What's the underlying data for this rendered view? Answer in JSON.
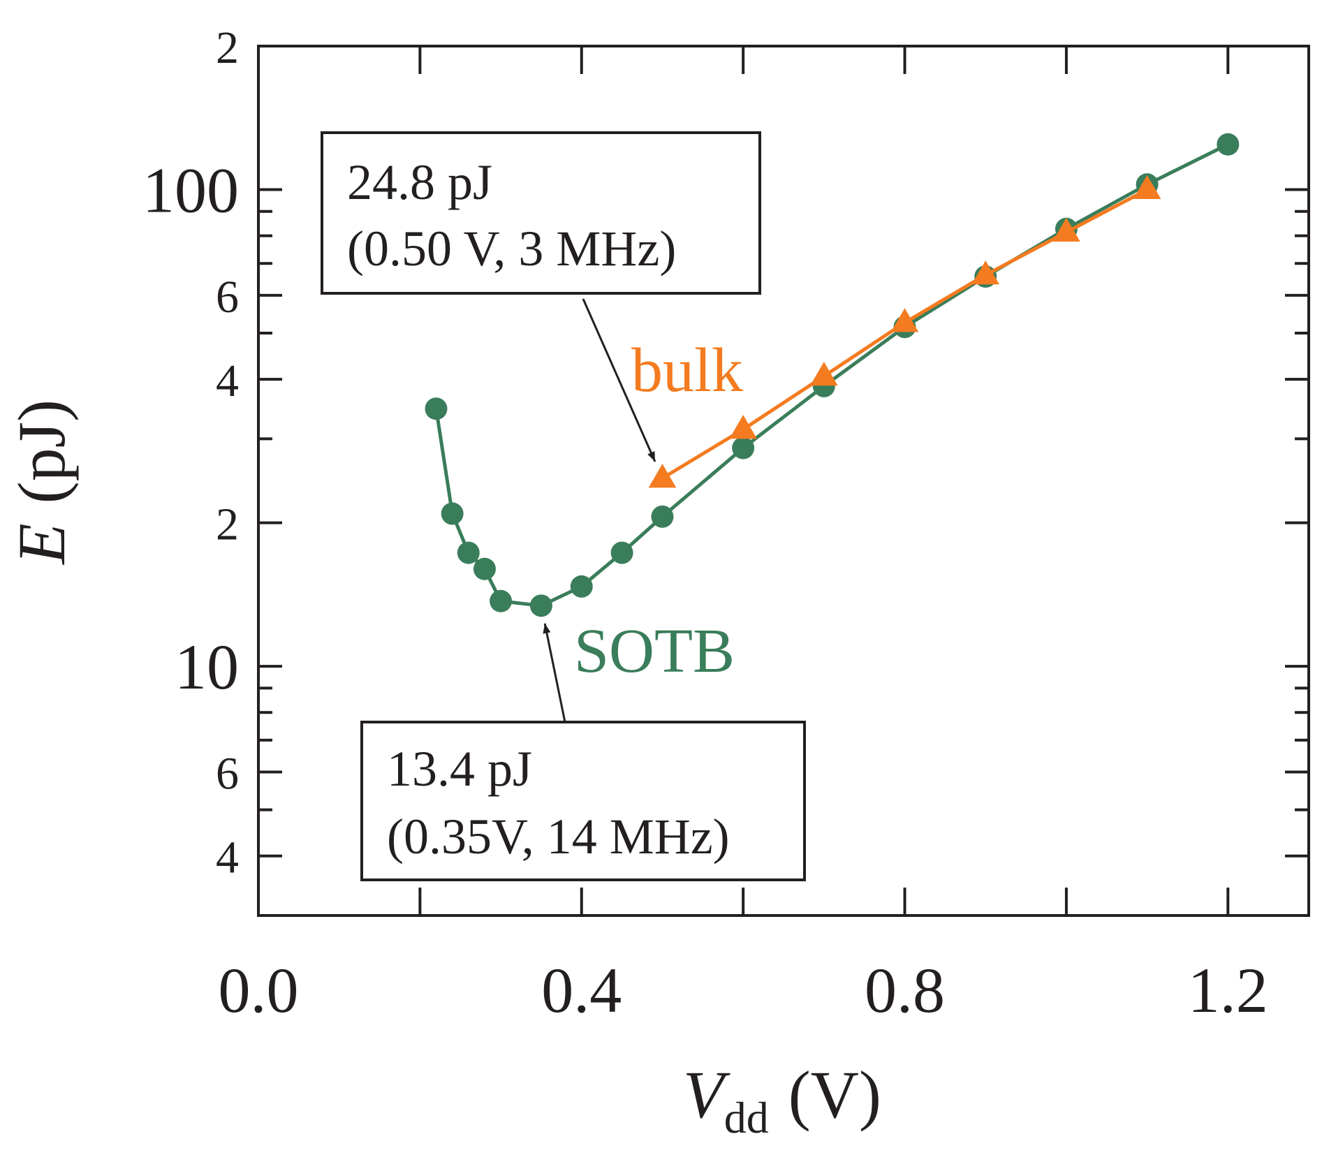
{
  "chart_data": {
    "type": "line",
    "xlabel": {
      "symbol": "V",
      "subscript": "dd",
      "unit": "(V)"
    },
    "ylabel": {
      "symbol": "E",
      "unit": "(pJ)"
    },
    "xlim": [
      0,
      1.3
    ],
    "xticks": [
      {
        "value": 0,
        "label": "0.0"
      },
      0.4,
      0.8,
      1.2
    ],
    "minor_xticks": [
      0.2,
      0.6,
      1.0
    ],
    "ylim": [
      3,
      200
    ],
    "yscale": "log",
    "yticks": [
      {
        "value": 200,
        "label": "2"
      },
      100,
      {
        "value": 60,
        "label": "6"
      },
      {
        "value": 40,
        "label": "4"
      },
      {
        "value": 20,
        "label": "2"
      },
      10,
      {
        "value": 6,
        "label": "6"
      },
      {
        "value": 4,
        "label": "4"
      }
    ],
    "minor_yticks": [
      5,
      7,
      8,
      9,
      30,
      50,
      70,
      80,
      90
    ],
    "series": [
      {
        "name": "SOTB",
        "color": "#3a7d5a",
        "marker": "circle",
        "x": [
          0.22,
          0.24,
          0.26,
          0.28,
          0.3,
          0.35,
          0.4,
          0.45,
          0.5,
          0.6,
          0.7,
          0.8,
          0.9,
          1.0,
          1.1,
          1.2
        ],
        "values": [
          34.7,
          20.9,
          17.3,
          16.0,
          13.7,
          13.4,
          14.7,
          17.3,
          20.6,
          28.7,
          38.7,
          51.5,
          65.7,
          82.7,
          102.5,
          124.4
        ]
      },
      {
        "name": "bulk",
        "color": "#f47b20",
        "marker": "triangle",
        "x": [
          0.5,
          0.6,
          0.7,
          0.8,
          0.9,
          1.0,
          1.1
        ],
        "values": [
          24.8,
          31.4,
          40.6,
          52.6,
          66.2,
          81.4,
          100
        ]
      }
    ],
    "annotations": [
      {
        "lines": [
          "24.8 pJ",
          "(0.50 V, 3 MHz)"
        ]
      },
      {
        "lines": [
          "13.4 pJ",
          "(0.35V, 14 MHz)"
        ]
      }
    ]
  }
}
